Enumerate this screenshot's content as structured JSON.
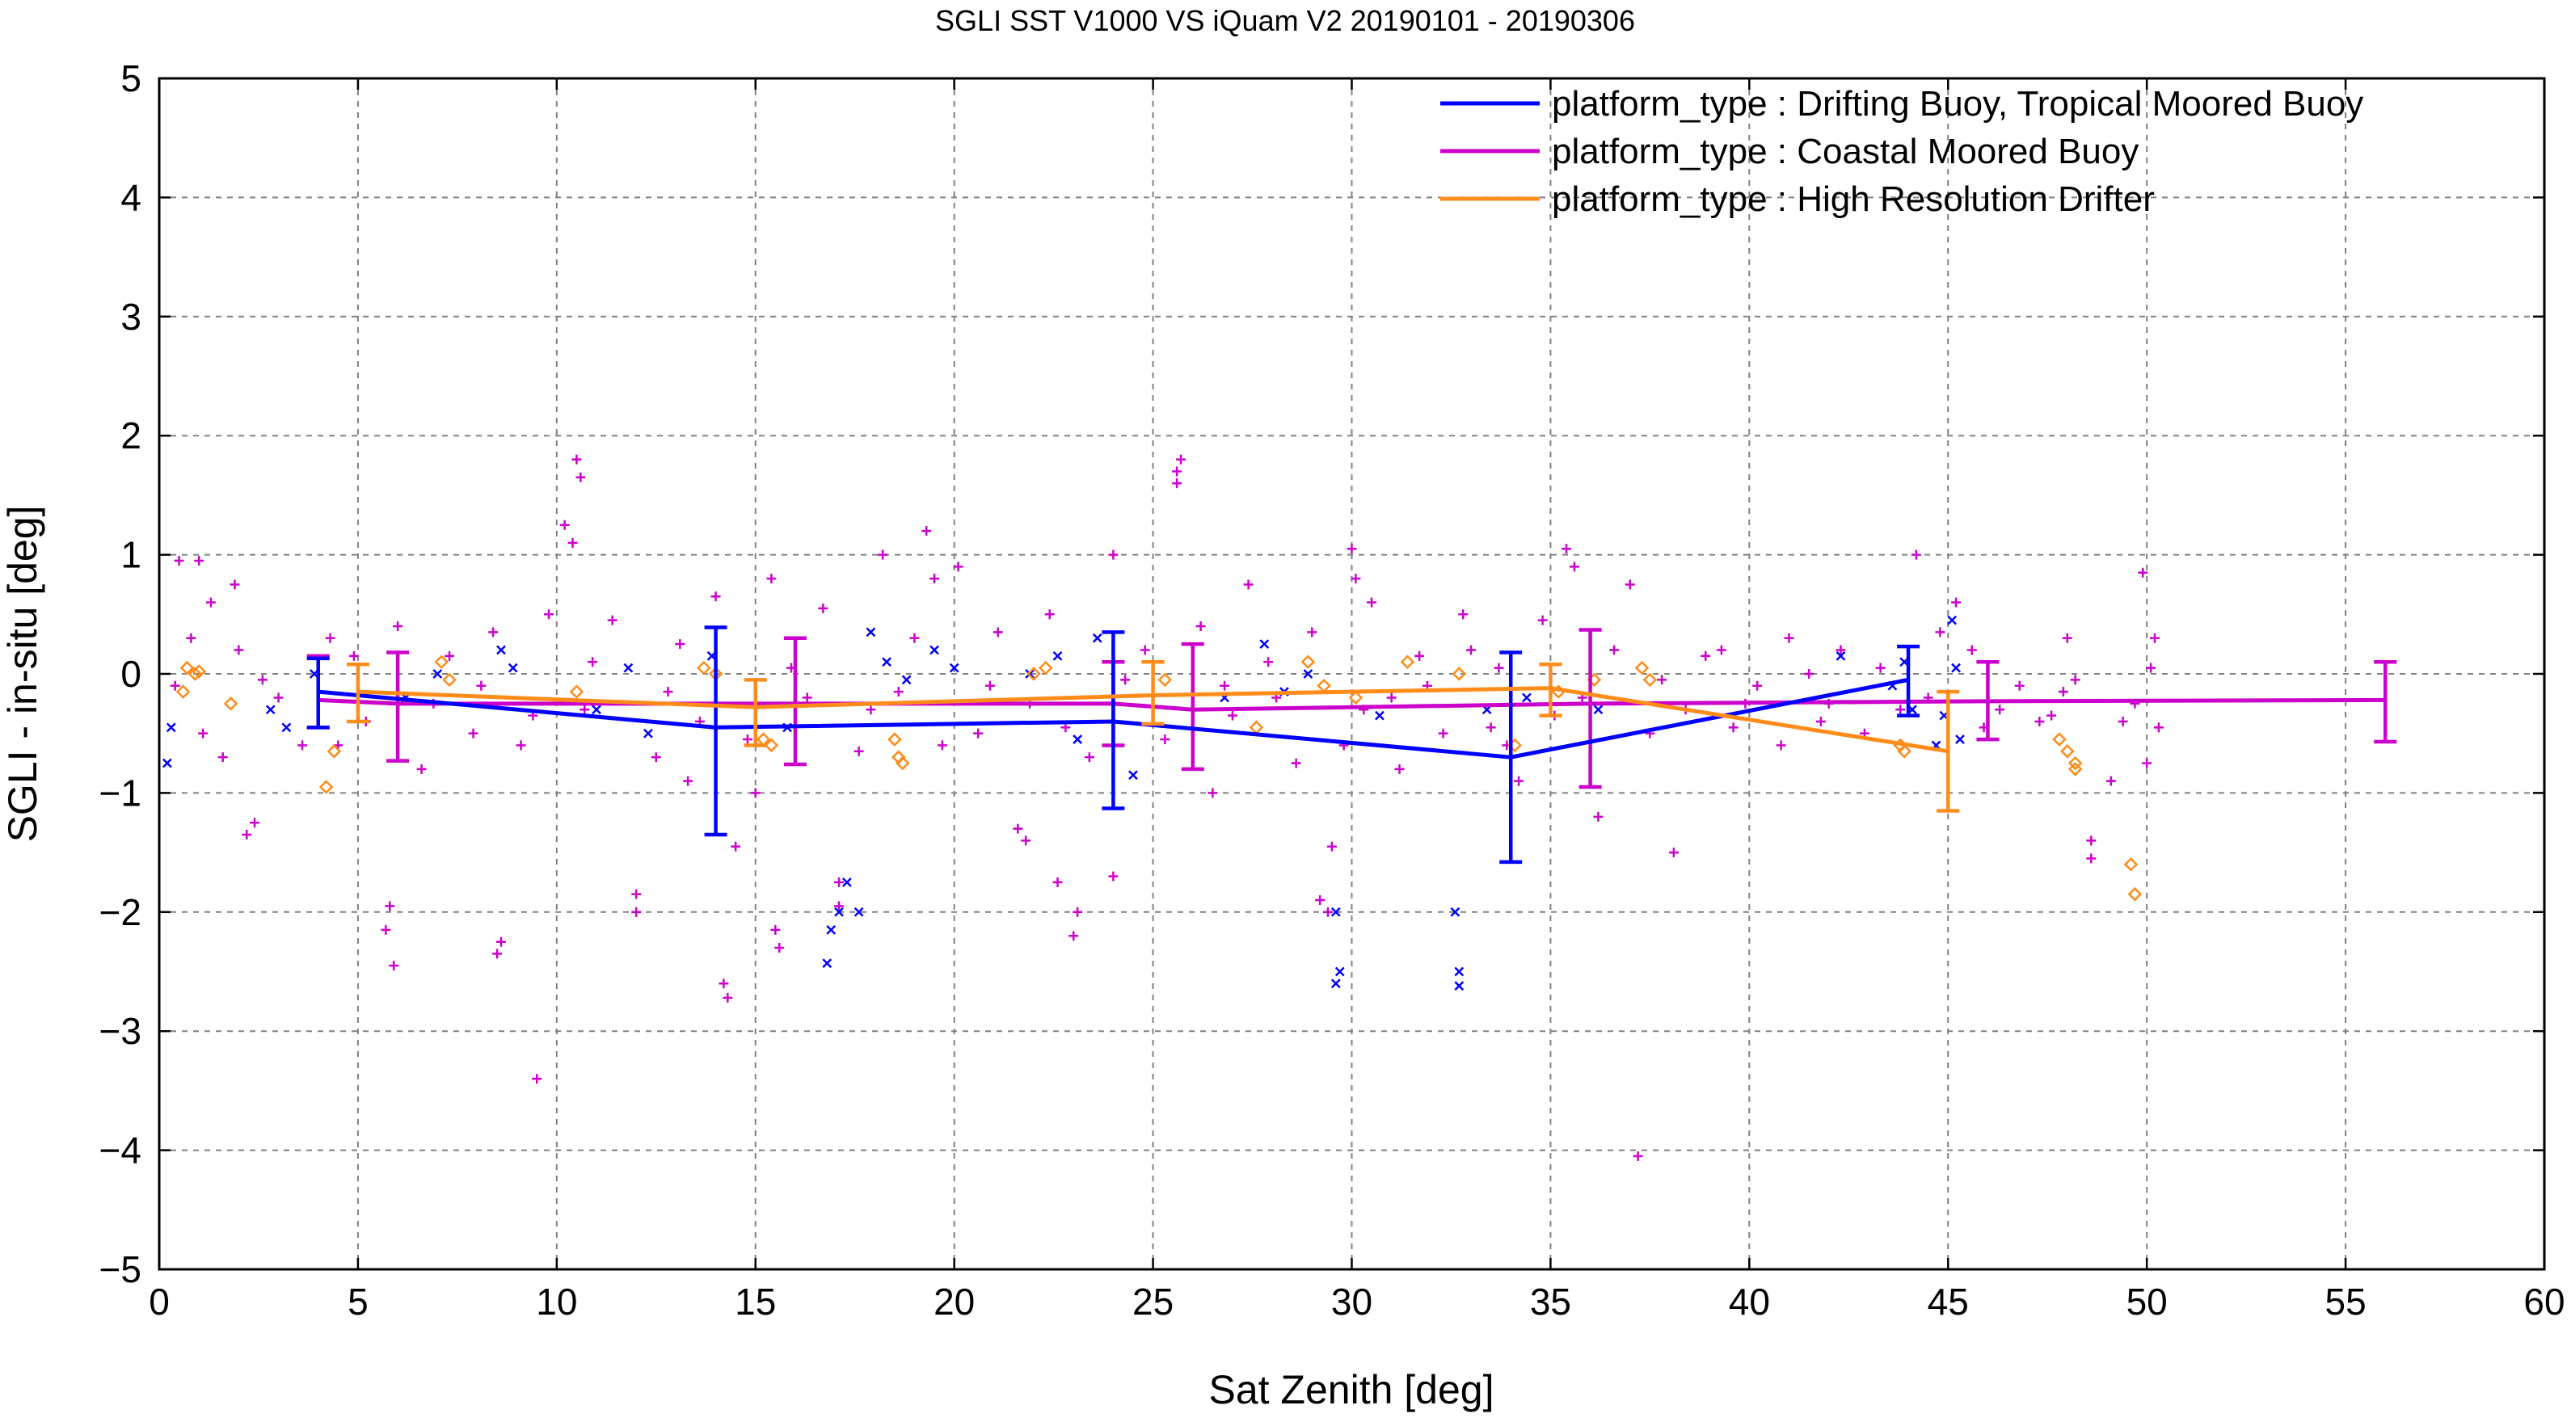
{
  "chart_data": {
    "type": "scatter",
    "title": "SGLI SST V1000 VS iQuam V2 20190101 - 20190306",
    "xlabel": "Sat Zenith [deg]",
    "ylabel": "SGLI - in-situ [deg]",
    "xlim": [
      0,
      60
    ],
    "ylim": [
      -5,
      5
    ],
    "xticks": [
      0,
      5,
      10,
      15,
      20,
      25,
      30,
      35,
      40,
      45,
      50,
      55,
      60
    ],
    "yticks": [
      5,
      4,
      3,
      2,
      1,
      0,
      -1,
      -2,
      -3,
      -4,
      -5
    ],
    "xtick_labels": [
      "0",
      "5",
      "10",
      "15",
      "20",
      "25",
      "30",
      "35",
      "40",
      "45",
      "50",
      "55",
      "60"
    ],
    "ytick_labels": [
      "5",
      "4",
      "3",
      "2",
      "1",
      "0",
      "−1",
      "−2",
      "−3",
      "−4",
      "−5"
    ],
    "grid": true,
    "legend_position": "top-right",
    "series": [
      {
        "name": "platform_type : Drifting Buoy, Tropical Moored Buoy",
        "color": "#0000ff",
        "marker": "x",
        "mean_line": {
          "x": [
            4,
            14,
            24,
            34,
            44
          ],
          "y": [
            -0.15,
            -0.45,
            -0.4,
            -0.7,
            -0.05
          ],
          "err_low": [
            -0.45,
            -1.35,
            -1.13,
            -1.58,
            -0.35
          ],
          "err_high": [
            0.13,
            0.39,
            0.35,
            0.18,
            0.23
          ]
        },
        "points": [
          [
            0.2,
            -0.75
          ],
          [
            0.3,
            -0.45
          ],
          [
            2.8,
            -0.3
          ],
          [
            3.2,
            -0.45
          ],
          [
            3.9,
            0.0
          ],
          [
            6.2,
            -0.2
          ],
          [
            7.0,
            0.0
          ],
          [
            8.6,
            0.2
          ],
          [
            8.9,
            0.05
          ],
          [
            11.0,
            -0.3
          ],
          [
            11.8,
            0.05
          ],
          [
            12.3,
            -0.5
          ],
          [
            13.9,
            0.15
          ],
          [
            15.8,
            -0.45
          ],
          [
            16.9,
            -2.15
          ],
          [
            17.1,
            -2.0
          ],
          [
            16.8,
            -2.43
          ],
          [
            17.6,
            -2.0
          ],
          [
            17.3,
            -1.75
          ],
          [
            17.9,
            0.35
          ],
          [
            18.3,
            0.1
          ],
          [
            18.8,
            -0.05
          ],
          [
            19.5,
            0.2
          ],
          [
            20.0,
            0.05
          ],
          [
            21.9,
            0.0
          ],
          [
            22.6,
            0.15
          ],
          [
            23.1,
            -0.55
          ],
          [
            23.6,
            0.3
          ],
          [
            24.5,
            -0.85
          ],
          [
            26.8,
            -0.2
          ],
          [
            27.8,
            0.25
          ],
          [
            28.3,
            -0.15
          ],
          [
            28.9,
            0.0
          ],
          [
            29.6,
            -2.0
          ],
          [
            29.7,
            -2.5
          ],
          [
            29.6,
            -2.6
          ],
          [
            30.7,
            -0.35
          ],
          [
            32.6,
            -2.0
          ],
          [
            32.7,
            -2.5
          ],
          [
            32.7,
            -2.62
          ],
          [
            33.4,
            -0.3
          ],
          [
            34.4,
            -0.2
          ],
          [
            36.2,
            -0.3
          ],
          [
            42.3,
            0.15
          ],
          [
            43.6,
            -0.1
          ],
          [
            44.1,
            -0.3
          ],
          [
            44.7,
            -0.6
          ],
          [
            45.1,
            0.45
          ],
          [
            45.2,
            0.05
          ],
          [
            45.3,
            -0.55
          ],
          [
            44.9,
            -0.35
          ],
          [
            43.9,
            0.1
          ]
        ]
      },
      {
        "name": "platform_type : Coastal Moored Buoy",
        "color": "#cc00cc",
        "marker": "+",
        "mean_line": {
          "x": [
            4,
            6,
            16,
            24,
            26,
            36,
            46,
            56
          ],
          "y": [
            -0.22,
            -0.25,
            -0.25,
            -0.25,
            -0.3,
            -0.25,
            -0.23,
            -0.22
          ],
          "err_low": [
            -0.45,
            -0.73,
            -0.76,
            -0.6,
            -0.8,
            -0.95,
            -0.55,
            -0.57
          ],
          "err_high": [
            0.15,
            0.18,
            0.3,
            0.1,
            0.25,
            0.37,
            0.1,
            0.1
          ]
        },
        "points": [
          [
            0.5,
            0.95
          ],
          [
            1.0,
            0.95
          ],
          [
            1.3,
            0.6
          ],
          [
            1.9,
            0.75
          ],
          [
            2.2,
            -1.35
          ],
          [
            2.4,
            -1.25
          ],
          [
            4.5,
            -0.6
          ],
          [
            5.8,
            -1.95
          ],
          [
            5.9,
            -2.45
          ],
          [
            5.7,
            -2.15
          ],
          [
            8.5,
            -2.35
          ],
          [
            8.6,
            -2.25
          ],
          [
            9.5,
            -3.4
          ],
          [
            10.2,
            1.25
          ],
          [
            10.4,
            1.1
          ],
          [
            10.5,
            1.8
          ],
          [
            10.6,
            1.65
          ],
          [
            12.0,
            -1.85
          ],
          [
            12.0,
            -2.0
          ],
          [
            14.2,
            -2.6
          ],
          [
            14.3,
            -2.72
          ],
          [
            14.5,
            -1.45
          ],
          [
            15.0,
            -1.0
          ],
          [
            15.5,
            -2.15
          ],
          [
            15.6,
            -2.3
          ],
          [
            17.1,
            -1.75
          ],
          [
            17.1,
            -1.95
          ],
          [
            18.2,
            1.0
          ],
          [
            19.3,
            1.2
          ],
          [
            19.5,
            0.8
          ],
          [
            20.1,
            0.9
          ],
          [
            21.6,
            -1.3
          ],
          [
            21.8,
            -1.4
          ],
          [
            22.6,
            -1.75
          ],
          [
            23.0,
            -2.2
          ],
          [
            23.1,
            -2.0
          ],
          [
            24.0,
            1.0
          ],
          [
            24.0,
            -1.7
          ],
          [
            25.6,
            1.7
          ],
          [
            25.7,
            1.8
          ],
          [
            25.6,
            1.6
          ],
          [
            26.5,
            -1.0
          ],
          [
            27.4,
            0.75
          ],
          [
            29.2,
            -1.9
          ],
          [
            29.4,
            -2.0
          ],
          [
            29.5,
            -1.45
          ],
          [
            30.0,
            1.05
          ],
          [
            30.1,
            0.8
          ],
          [
            31.2,
            -0.8
          ],
          [
            32.8,
            0.5
          ],
          [
            33.5,
            -0.45
          ],
          [
            34.2,
            -0.9
          ],
          [
            35.4,
            1.05
          ],
          [
            35.6,
            0.9
          ],
          [
            36.2,
            -1.2
          ],
          [
            37.0,
            0.75
          ],
          [
            37.2,
            -4.05
          ],
          [
            38.1,
            -1.5
          ],
          [
            39.3,
            0.2
          ],
          [
            41.0,
            0.3
          ],
          [
            42.3,
            0.2
          ],
          [
            44.2,
            1.0
          ],
          [
            44.8,
            0.35
          ],
          [
            45.2,
            0.6
          ],
          [
            47.3,
            -0.4
          ],
          [
            48.0,
            0.3
          ],
          [
            49.1,
            -0.9
          ],
          [
            48.6,
            -1.55
          ],
          [
            48.6,
            -1.4
          ],
          [
            49.9,
            0.85
          ],
          [
            50.0,
            -0.75
          ],
          [
            50.2,
            0.3
          ],
          [
            50.3,
            -0.45
          ],
          [
            0.4,
            -0.1
          ],
          [
            1.1,
            -0.5
          ],
          [
            2.0,
            0.2
          ],
          [
            3.0,
            -0.2
          ],
          [
            3.6,
            -0.6
          ],
          [
            4.3,
            0.3
          ],
          [
            5.2,
            -0.4
          ],
          [
            6.0,
            0.4
          ],
          [
            6.6,
            -0.8
          ],
          [
            7.3,
            0.15
          ],
          [
            7.9,
            -0.5
          ],
          [
            8.4,
            0.35
          ],
          [
            9.1,
            -0.6
          ],
          [
            9.8,
            0.5
          ],
          [
            10.7,
            -0.3
          ],
          [
            11.4,
            0.45
          ],
          [
            12.5,
            -0.7
          ],
          [
            13.1,
            0.25
          ],
          [
            13.6,
            -0.4
          ],
          [
            14.0,
            0.65
          ],
          [
            14.8,
            -0.55
          ],
          [
            15.4,
            0.8
          ],
          [
            16.3,
            -0.2
          ],
          [
            16.7,
            0.55
          ],
          [
            17.6,
            -0.65
          ],
          [
            18.6,
            -0.15
          ],
          [
            19.0,
            0.3
          ],
          [
            20.6,
            -0.5
          ],
          [
            21.1,
            0.35
          ],
          [
            21.9,
            -0.25
          ],
          [
            22.4,
            0.5
          ],
          [
            23.4,
            -0.7
          ],
          [
            24.8,
            0.2
          ],
          [
            25.3,
            -0.55
          ],
          [
            26.2,
            0.4
          ],
          [
            27.0,
            -0.35
          ],
          [
            27.9,
            0.1
          ],
          [
            28.6,
            -0.75
          ],
          [
            29.0,
            0.35
          ],
          [
            29.8,
            -0.6
          ],
          [
            30.5,
            0.6
          ],
          [
            31.0,
            -0.2
          ],
          [
            31.7,
            0.15
          ],
          [
            32.3,
            -0.5
          ],
          [
            33.0,
            0.2
          ],
          [
            33.9,
            -0.6
          ],
          [
            34.8,
            0.45
          ],
          [
            35.1,
            -0.35
          ],
          [
            36.6,
            0.2
          ],
          [
            37.5,
            -0.5
          ],
          [
            38.4,
            -0.3
          ],
          [
            38.9,
            0.15
          ],
          [
            39.6,
            -0.45
          ],
          [
            40.2,
            -0.1
          ],
          [
            40.8,
            -0.6
          ],
          [
            41.5,
            0.0
          ],
          [
            42.0,
            -0.25
          ],
          [
            42.9,
            -0.5
          ],
          [
            43.3,
            0.05
          ],
          [
            44.5,
            -0.2
          ],
          [
            45.6,
            0.2
          ],
          [
            46.3,
            -0.3
          ],
          [
            46.8,
            -0.1
          ],
          [
            47.6,
            -0.35
          ],
          [
            48.2,
            -0.05
          ],
          [
            49.4,
            -0.4
          ],
          [
            50.1,
            0.05
          ],
          [
            0.8,
            0.3
          ],
          [
            1.6,
            -0.7
          ],
          [
            2.6,
            -0.05
          ],
          [
            4.9,
            0.15
          ],
          [
            6.9,
            -0.25
          ],
          [
            8.1,
            -0.1
          ],
          [
            9.4,
            -0.35
          ],
          [
            10.9,
            0.1
          ],
          [
            12.8,
            -0.15
          ],
          [
            13.3,
            -0.9
          ],
          [
            15.9,
            0.05
          ],
          [
            17.9,
            -0.3
          ],
          [
            19.7,
            -0.6
          ],
          [
            20.9,
            -0.1
          ],
          [
            22.8,
            -0.45
          ],
          [
            24.3,
            -0.05
          ],
          [
            26.8,
            -0.1
          ],
          [
            28.1,
            -0.2
          ],
          [
            30.3,
            -0.3
          ],
          [
            31.9,
            -0.1
          ],
          [
            33.7,
            0.05
          ],
          [
            35.8,
            -0.2
          ],
          [
            37.8,
            -0.05
          ],
          [
            39.9,
            -0.25
          ],
          [
            41.8,
            -0.4
          ],
          [
            43.8,
            -0.3
          ],
          [
            45.9,
            -0.45
          ],
          [
            47.9,
            -0.15
          ],
          [
            49.7,
            -0.25
          ]
        ]
      },
      {
        "name": "platform_type : High Resolution Drifter",
        "color": "#ff8c1a",
        "marker": "diamond",
        "mean_line": {
          "x": [
            5,
            15,
            25,
            35,
            45
          ],
          "y": [
            -0.15,
            -0.28,
            -0.18,
            -0.12,
            -0.65
          ],
          "err_low": [
            -0.4,
            -0.6,
            -0.42,
            -0.35,
            -1.15
          ],
          "err_high": [
            0.08,
            -0.05,
            0.1,
            0.08,
            -0.15
          ]
        },
        "points": [
          [
            0.6,
            -0.15
          ],
          [
            0.7,
            0.05
          ],
          [
            0.9,
            0.0
          ],
          [
            1.0,
            0.02
          ],
          [
            1.8,
            -0.25
          ],
          [
            4.2,
            -0.95
          ],
          [
            4.4,
            -0.65
          ],
          [
            7.1,
            0.1
          ],
          [
            7.3,
            -0.05
          ],
          [
            10.5,
            -0.15
          ],
          [
            13.7,
            0.05
          ],
          [
            14.0,
            0.0
          ],
          [
            15.2,
            -0.55
          ],
          [
            15.4,
            -0.6
          ],
          [
            18.5,
            -0.55
          ],
          [
            18.6,
            -0.7
          ],
          [
            18.7,
            -0.75
          ],
          [
            22.0,
            0.0
          ],
          [
            22.3,
            0.05
          ],
          [
            25.3,
            -0.05
          ],
          [
            27.6,
            -0.45
          ],
          [
            28.9,
            0.1
          ],
          [
            29.3,
            -0.1
          ],
          [
            30.1,
            -0.2
          ],
          [
            31.4,
            0.1
          ],
          [
            32.7,
            0.0
          ],
          [
            34.1,
            -0.6
          ],
          [
            35.2,
            -0.15
          ],
          [
            36.1,
            -0.05
          ],
          [
            37.3,
            0.05
          ],
          [
            37.5,
            -0.05
          ],
          [
            43.8,
            -0.6
          ],
          [
            43.9,
            -0.65
          ],
          [
            47.8,
            -0.55
          ],
          [
            48.0,
            -0.65
          ],
          [
            48.2,
            -0.75
          ],
          [
            48.2,
            -0.8
          ],
          [
            49.6,
            -1.6
          ],
          [
            49.7,
            -1.85
          ]
        ]
      }
    ]
  }
}
